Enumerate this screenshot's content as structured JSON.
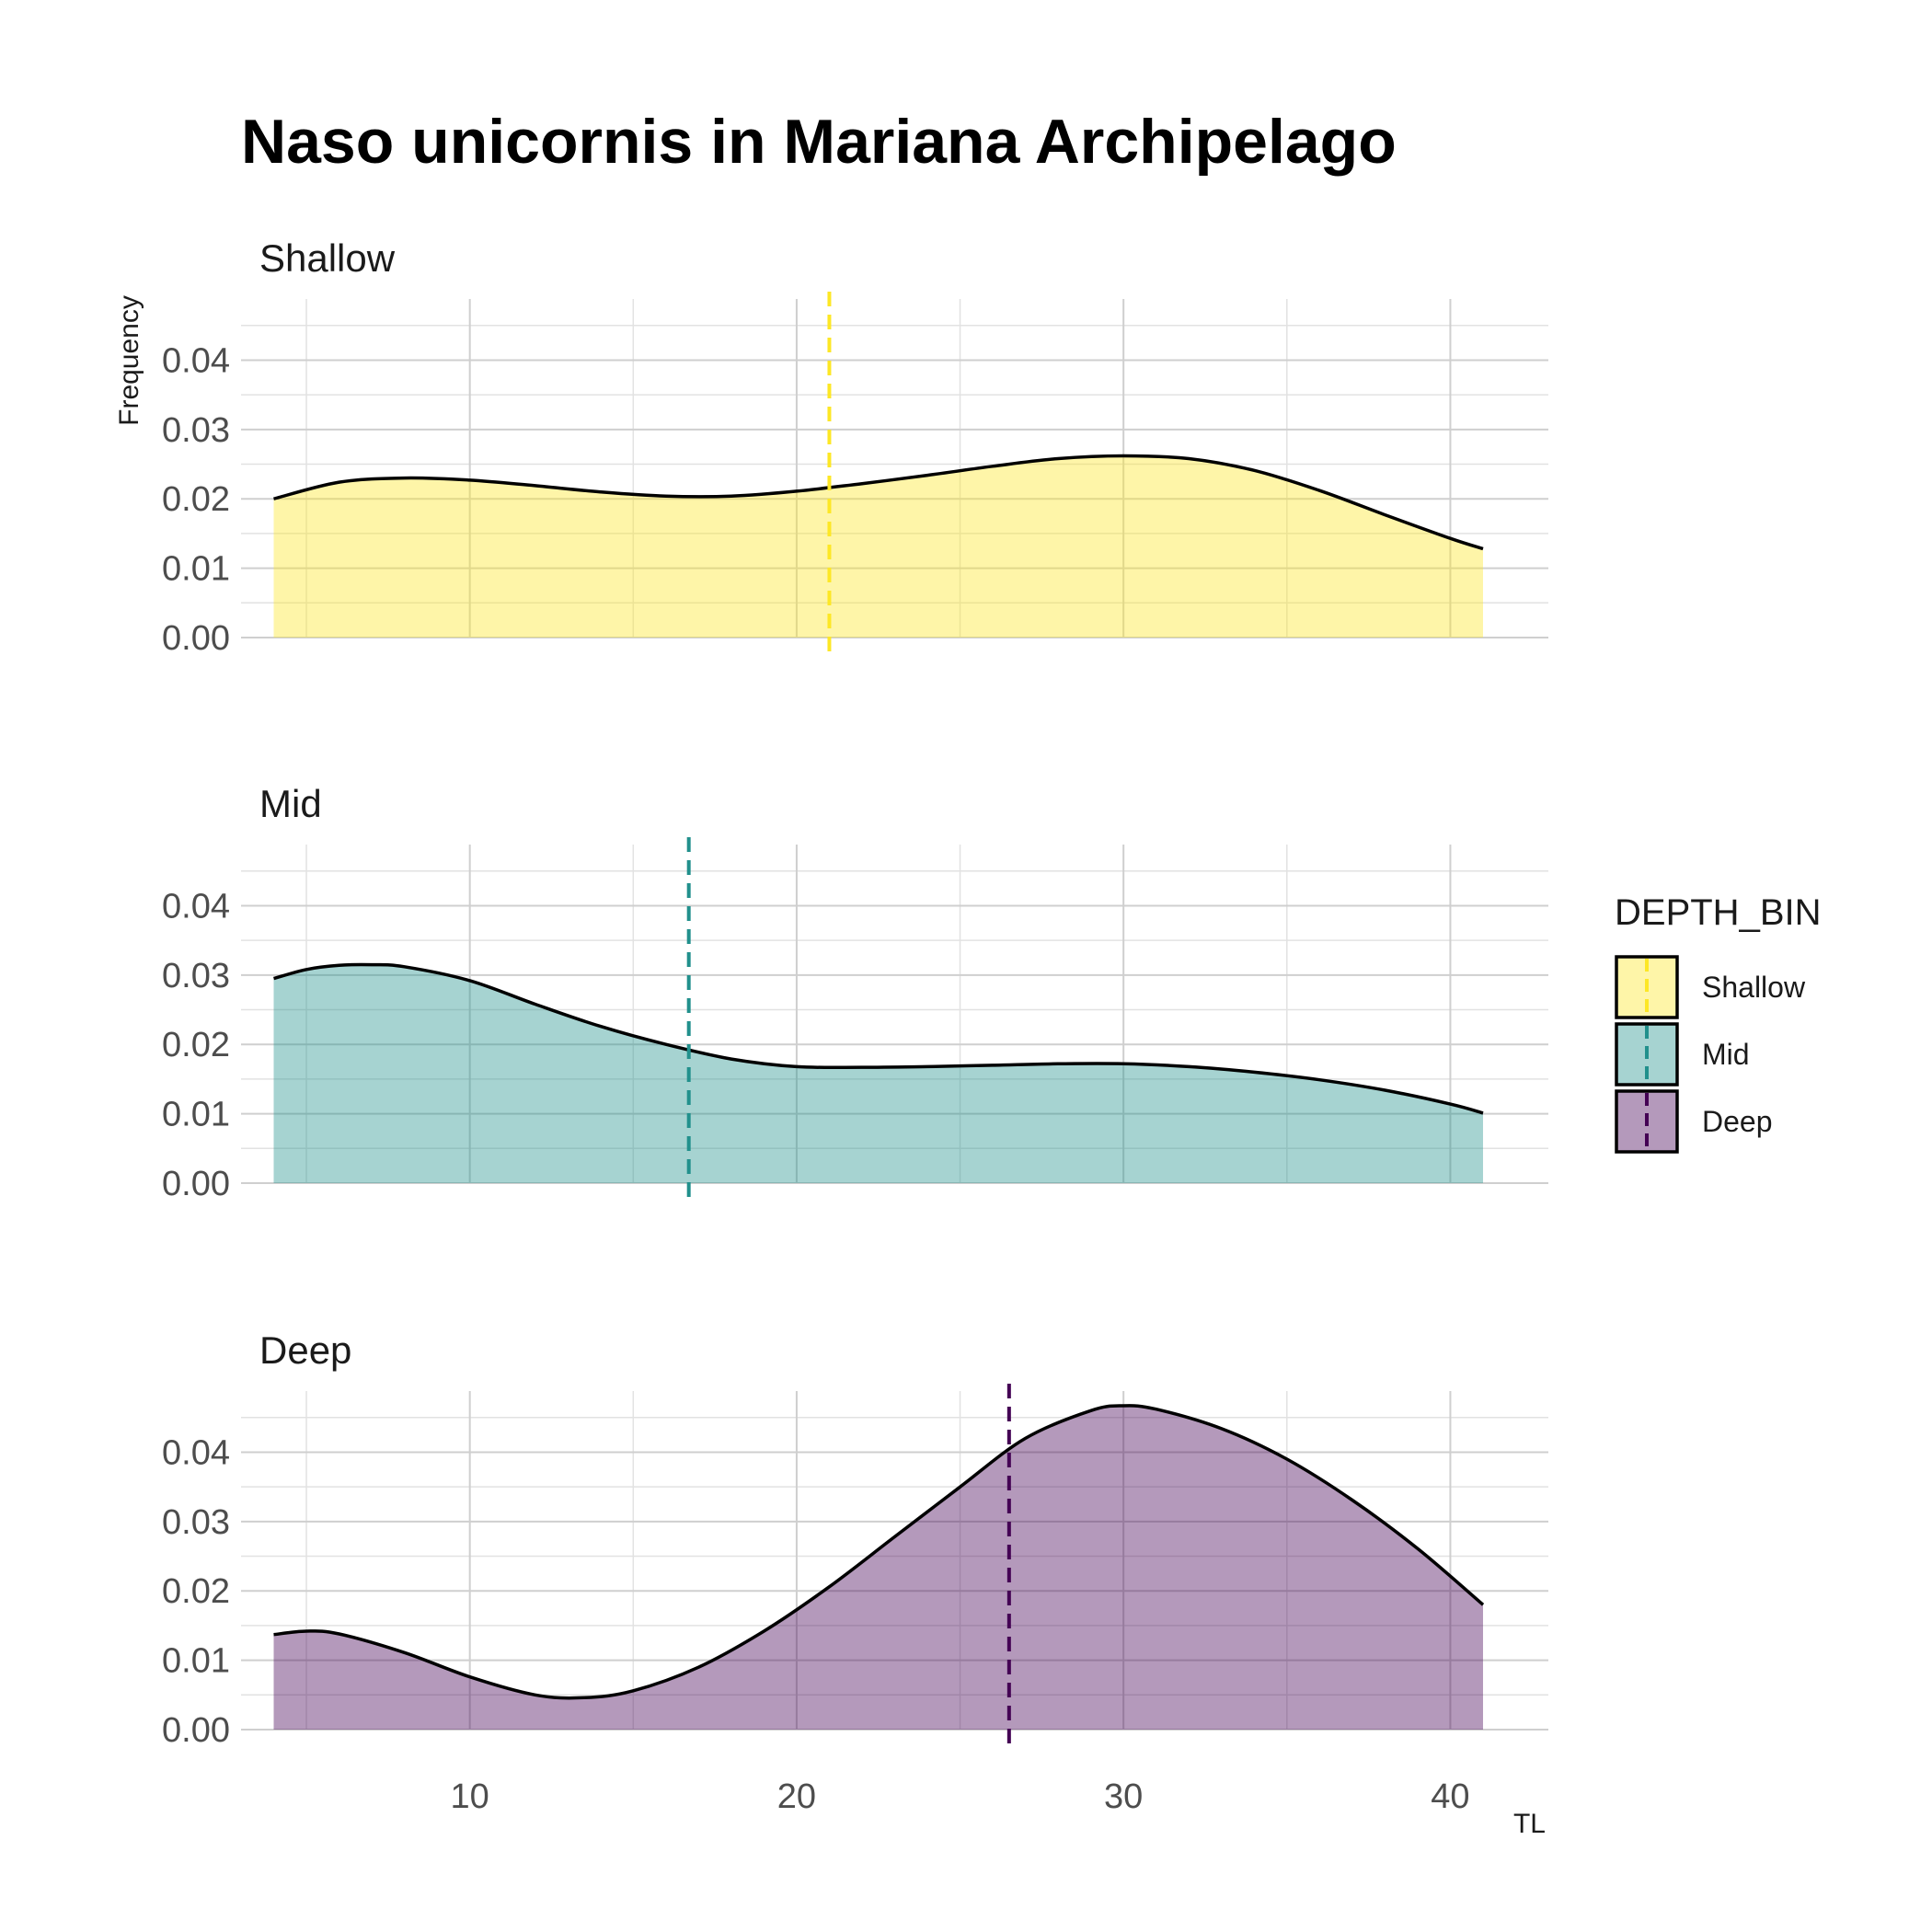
{
  "chart_data": {
    "type": "area",
    "title": "Naso unicornis in Mariana Archipelago",
    "xlabel": "TL",
    "ylabel": "Frequency",
    "xlim": [
      3,
      43
    ],
    "ylim": [
      0,
      0.048
    ],
    "x_ticks": [
      10,
      20,
      30,
      40
    ],
    "x_tick_labels": [
      "10",
      "20",
      "30",
      "40"
    ],
    "y_ticks": [
      0,
      0.01,
      0.02,
      0.03,
      0.04
    ],
    "y_tick_labels": [
      "0.00",
      "0.01",
      "0.02",
      "0.03",
      "0.04"
    ],
    "grid": true,
    "legend": {
      "title": "DEPTH_BIN",
      "position": "right",
      "entries": [
        "Shallow",
        "Mid",
        "Deep"
      ]
    },
    "series": [
      {
        "name": "Shallow",
        "color": "#FDE725",
        "mean": 21,
        "x": [
          4,
          6,
          8,
          10,
          12,
          14,
          16,
          18,
          20,
          22,
          24,
          26,
          28,
          30,
          32,
          34,
          36,
          38,
          40,
          41
        ],
        "values": [
          0.02,
          0.0224,
          0.023,
          0.0227,
          0.0219,
          0.021,
          0.0204,
          0.0204,
          0.0211,
          0.0222,
          0.0234,
          0.0247,
          0.0258,
          0.0262,
          0.0258,
          0.0241,
          0.0212,
          0.0177,
          0.0143,
          0.0128
        ]
      },
      {
        "name": "Mid",
        "color": "#21908C",
        "mean": 16.7,
        "x": [
          4,
          5,
          6,
          7,
          8,
          10,
          12,
          14,
          16,
          18,
          20,
          22,
          24,
          26,
          28,
          30,
          32,
          34,
          36,
          38,
          40,
          41
        ],
        "values": [
          0.0295,
          0.0308,
          0.0314,
          0.0315,
          0.0312,
          0.0292,
          0.0258,
          0.0226,
          0.02,
          0.0179,
          0.0168,
          0.0167,
          0.0168,
          0.017,
          0.0172,
          0.0172,
          0.0168,
          0.016,
          0.0149,
          0.0134,
          0.0114,
          0.0101
        ]
      },
      {
        "name": "Deep",
        "color": "#440154",
        "mean": 26.5,
        "x": [
          4,
          5,
          6,
          8,
          10,
          12,
          13.5,
          15,
          17,
          19,
          21,
          23,
          25,
          27,
          29,
          30,
          31,
          33,
          35,
          37,
          39,
          41
        ],
        "values": [
          0.0137,
          0.0142,
          0.0138,
          0.0111,
          0.0076,
          0.005,
          0.0046,
          0.0056,
          0.009,
          0.0142,
          0.0206,
          0.0278,
          0.035,
          0.042,
          0.046,
          0.0467,
          0.0462,
          0.0434,
          0.039,
          0.0331,
          0.0261,
          0.018
        ]
      }
    ]
  }
}
